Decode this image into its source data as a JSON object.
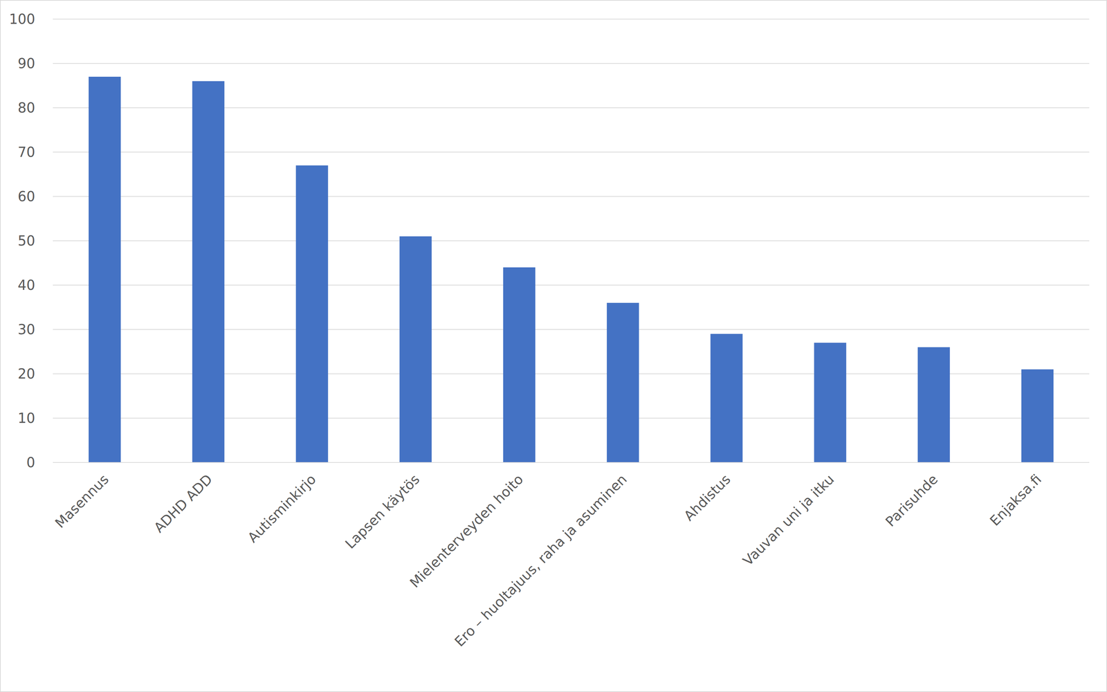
{
  "chart_data": {
    "type": "bar",
    "categories": [
      "Masennus",
      "ADHD ADD",
      "Autisminkirjo",
      "Lapsen käytös",
      "Mielenterveyden hoito",
      "Ero – huoltajuus, raha ja asuminen",
      "Ahdistus",
      "Vauvan uni ja itku",
      "Parisuhde",
      "Enjaksa.fi"
    ],
    "values": [
      87,
      86,
      67,
      51,
      44,
      36,
      29,
      27,
      26,
      21
    ],
    "color": "#4472c4",
    "ylim": [
      0,
      100
    ],
    "yticks": [
      0,
      10,
      20,
      30,
      40,
      50,
      60,
      70,
      80,
      90,
      100
    ],
    "grid": true
  }
}
